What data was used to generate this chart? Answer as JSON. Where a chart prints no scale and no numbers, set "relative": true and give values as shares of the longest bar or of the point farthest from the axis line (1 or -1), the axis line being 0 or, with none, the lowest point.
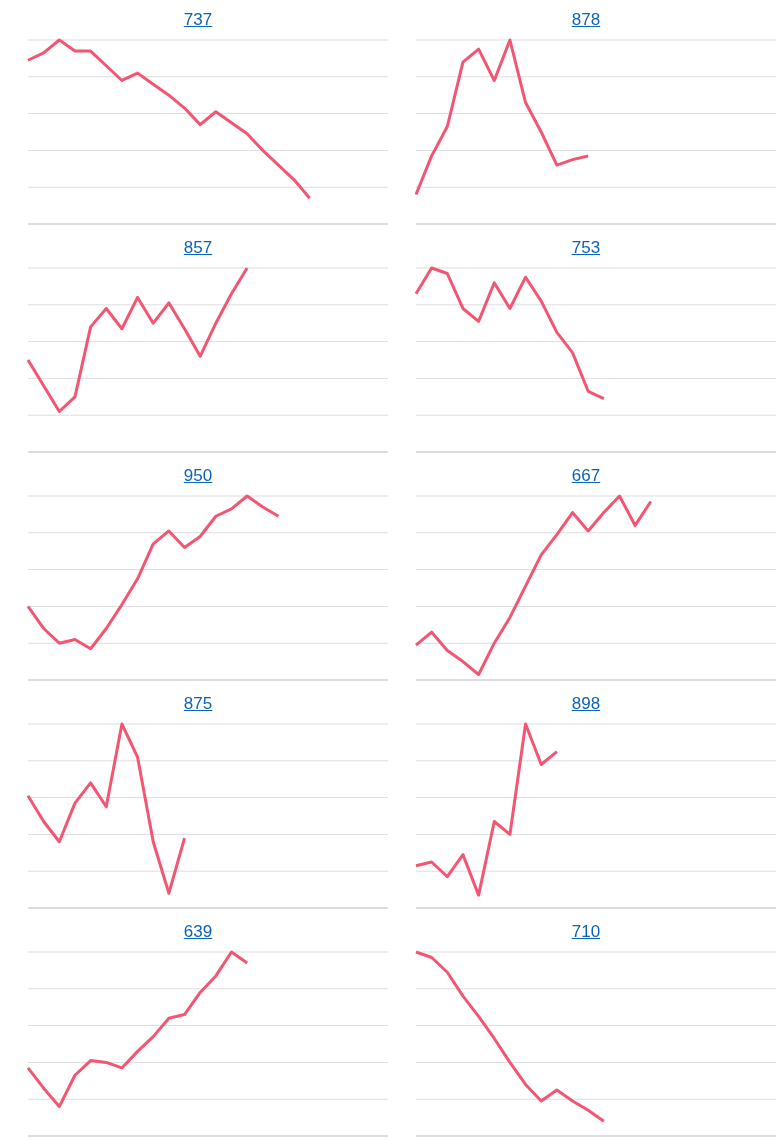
{
  "chart_data": [
    {
      "type": "line",
      "title": "737",
      "relative": true,
      "grid": "y",
      "categories": [
        null,
        null,
        null,
        null,
        null,
        null,
        null,
        null,
        null,
        null,
        null,
        null,
        null,
        null,
        null,
        null,
        null,
        null,
        null,
        null,
        null,
        null,
        null,
        null
      ],
      "series": [
        {
          "color": "#f25672",
          "values": [
            0.89,
            0.93,
            1,
            0.94,
            0.94,
            0.86,
            0.78,
            0.82,
            0.76,
            0.7,
            0.63,
            0.54,
            0.61,
            0.55,
            0.49,
            0.4,
            0.32,
            0.24,
            0.14,
            null,
            null,
            null,
            null,
            null
          ]
        }
      ]
    },
    {
      "type": "line",
      "title": "878",
      "relative": true,
      "grid": "y",
      "categories": [
        null,
        null,
        null,
        null,
        null,
        null,
        null,
        null,
        null,
        null,
        null,
        null,
        null,
        null,
        null,
        null,
        null,
        null,
        null,
        null,
        null,
        null,
        null,
        null
      ],
      "series": [
        {
          "color": "#f25672",
          "values": [
            0.16,
            0.37,
            0.53,
            0.88,
            0.95,
            0.78,
            1,
            0.66,
            0.5,
            0.32,
            0.35,
            0.37,
            null,
            null,
            null,
            null,
            null,
            null,
            null,
            null,
            null,
            null,
            null,
            null
          ]
        }
      ]
    },
    {
      "type": "line",
      "title": "857",
      "relative": true,
      "grid": "y",
      "categories": [
        null,
        null,
        null,
        null,
        null,
        null,
        null,
        null,
        null,
        null,
        null,
        null,
        null,
        null,
        null,
        null,
        null,
        null,
        null,
        null,
        null,
        null,
        null,
        null
      ],
      "series": [
        {
          "color": "#f25672",
          "values": [
            0.5,
            0.36,
            0.22,
            0.3,
            0.68,
            0.78,
            0.67,
            0.84,
            0.7,
            0.81,
            0.67,
            0.52,
            0.7,
            0.86,
            1,
            null,
            null,
            null,
            null,
            null,
            null,
            null,
            null,
            null
          ]
        }
      ]
    },
    {
      "type": "line",
      "title": "753",
      "relative": true,
      "grid": "y",
      "categories": [
        null,
        null,
        null,
        null,
        null,
        null,
        null,
        null,
        null,
        null,
        null,
        null,
        null,
        null,
        null,
        null,
        null,
        null,
        null,
        null,
        null,
        null,
        null,
        null
      ],
      "series": [
        {
          "color": "#f25672",
          "values": [
            0.86,
            1,
            0.97,
            0.78,
            0.71,
            0.92,
            0.78,
            0.95,
            0.82,
            0.65,
            0.54,
            0.33,
            0.29,
            null,
            null,
            null,
            null,
            null,
            null,
            null,
            null,
            null,
            null,
            null
          ]
        }
      ]
    },
    {
      "type": "line",
      "title": "950",
      "relative": true,
      "grid": "y",
      "categories": [
        null,
        null,
        null,
        null,
        null,
        null,
        null,
        null,
        null,
        null,
        null,
        null,
        null,
        null,
        null,
        null,
        null,
        null,
        null,
        null,
        null,
        null,
        null,
        null
      ],
      "series": [
        {
          "color": "#f25672",
          "values": [
            0.4,
            0.28,
            0.2,
            0.22,
            0.17,
            0.28,
            0.41,
            0.55,
            0.74,
            0.81,
            0.72,
            0.78,
            0.89,
            0.93,
            1,
            0.94,
            0.89,
            null,
            null,
            null,
            null,
            null,
            null,
            null
          ]
        }
      ]
    },
    {
      "type": "line",
      "title": "667",
      "relative": true,
      "grid": "y",
      "categories": [
        null,
        null,
        null,
        null,
        null,
        null,
        null,
        null,
        null,
        null,
        null,
        null,
        null,
        null,
        null,
        null,
        null,
        null,
        null,
        null,
        null,
        null,
        null,
        null
      ],
      "series": [
        {
          "color": "#f25672",
          "values": [
            0.19,
            0.26,
            0.16,
            0.1,
            0.03,
            0.2,
            0.34,
            0.51,
            0.68,
            0.79,
            0.91,
            0.81,
            0.91,
            1,
            0.84,
            0.97,
            null,
            null,
            null,
            null,
            null,
            null,
            null,
            null
          ]
        }
      ]
    },
    {
      "type": "line",
      "title": "875",
      "relative": true,
      "grid": "y",
      "categories": [
        null,
        null,
        null,
        null,
        null,
        null,
        null,
        null,
        null,
        null,
        null,
        null,
        null,
        null,
        null,
        null,
        null,
        null,
        null,
        null,
        null,
        null,
        null,
        null
      ],
      "series": [
        {
          "color": "#f25672",
          "values": [
            0.61,
            0.47,
            0.36,
            0.57,
            0.68,
            0.55,
            1,
            0.82,
            0.36,
            0.08,
            0.38,
            null,
            null,
            null,
            null,
            null,
            null,
            null,
            null,
            null,
            null,
            null,
            null,
            null
          ]
        }
      ]
    },
    {
      "type": "line",
      "title": "898",
      "relative": true,
      "grid": "y",
      "categories": [
        null,
        null,
        null,
        null,
        null,
        null,
        null,
        null,
        null,
        null,
        null,
        null,
        null,
        null,
        null,
        null,
        null,
        null,
        null,
        null,
        null,
        null,
        null,
        null
      ],
      "series": [
        {
          "color": "#f25672",
          "values": [
            0.23,
            0.25,
            0.17,
            0.29,
            0.07,
            0.47,
            0.4,
            1,
            0.78,
            0.85,
            null,
            null,
            null,
            null,
            null,
            null,
            null,
            null,
            null,
            null,
            null,
            null,
            null,
            null
          ]
        }
      ]
    },
    {
      "type": "line",
      "title": "639",
      "relative": true,
      "grid": "y",
      "categories": [
        null,
        null,
        null,
        null,
        null,
        null,
        null,
        null,
        null,
        null,
        null,
        null,
        null,
        null,
        null,
        null,
        null,
        null,
        null,
        null,
        null,
        null,
        null,
        null
      ],
      "series": [
        {
          "color": "#f25672",
          "values": [
            0.37,
            0.26,
            0.16,
            0.33,
            0.41,
            0.4,
            0.37,
            0.46,
            0.54,
            0.64,
            0.66,
            0.78,
            0.87,
            1,
            0.94,
            null,
            null,
            null,
            null,
            null,
            null,
            null,
            null,
            null
          ]
        }
      ]
    },
    {
      "type": "line",
      "title": "710",
      "relative": true,
      "grid": "y",
      "categories": [
        null,
        null,
        null,
        null,
        null,
        null,
        null,
        null,
        null,
        null,
        null,
        null,
        null,
        null,
        null,
        null,
        null,
        null,
        null,
        null,
        null,
        null,
        null,
        null
      ],
      "series": [
        {
          "color": "#f25672",
          "values": [
            1,
            0.97,
            0.89,
            0.76,
            0.65,
            0.53,
            0.4,
            0.28,
            0.19,
            0.25,
            0.19,
            0.14,
            0.08,
            null,
            null,
            null,
            null,
            null,
            null,
            null,
            null,
            null,
            null,
            null
          ]
        }
      ]
    }
  ]
}
